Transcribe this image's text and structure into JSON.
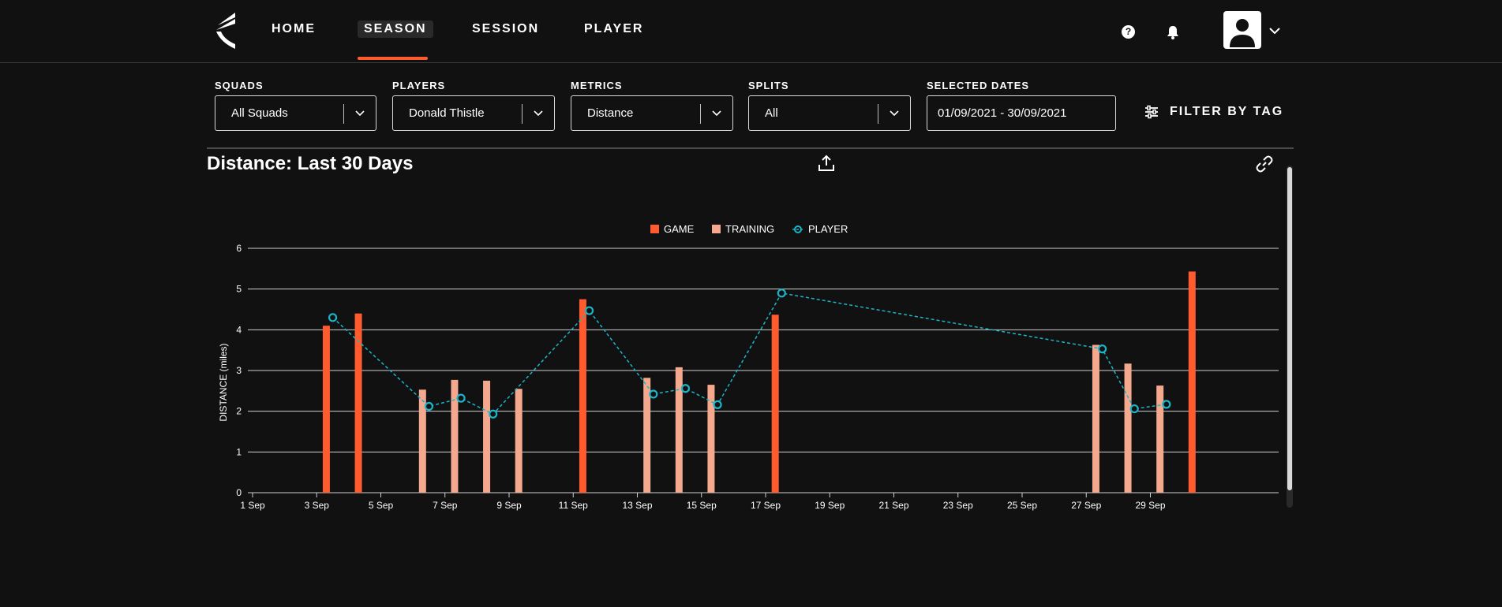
{
  "nav": {
    "items": [
      "HOME",
      "SEASON",
      "SESSION",
      "PLAYER"
    ],
    "active": "SEASON",
    "help_glyph": "?"
  },
  "filters": {
    "squads": {
      "label": "SQUADS",
      "value": "All Squads"
    },
    "players": {
      "label": "PLAYERS",
      "value": "Donald Thistle"
    },
    "metrics": {
      "label": "METRICS",
      "value": "Distance"
    },
    "splits": {
      "label": "SPLITS",
      "value": "All"
    },
    "dates": {
      "label": "SELECTED DATES",
      "value": "01/09/2021 - 30/09/2021"
    },
    "filter_by_tag": "FILTER BY TAG"
  },
  "colors": {
    "game": "#ff5b2e",
    "training": "#f4a98e",
    "player": "#1bb4c8",
    "grid": "#d0d0d0",
    "accent": "#ff5b2e"
  },
  "chart_data": {
    "type": "bar",
    "title": "Distance: Last 30 Days",
    "ylabel": "DISTANCE (miles)",
    "xlabel": "",
    "ylim": [
      0,
      6
    ],
    "yticks": [
      0,
      1,
      2,
      3,
      4,
      5,
      6
    ],
    "xlim": [
      1,
      33
    ],
    "xticks": [
      {
        "day": 1,
        "label": "1 Sep"
      },
      {
        "day": 3,
        "label": "3 Sep"
      },
      {
        "day": 5,
        "label": "5 Sep"
      },
      {
        "day": 7,
        "label": "7 Sep"
      },
      {
        "day": 9,
        "label": "9 Sep"
      },
      {
        "day": 11,
        "label": "11 Sep"
      },
      {
        "day": 13,
        "label": "13 Sep"
      },
      {
        "day": 15,
        "label": "15 Sep"
      },
      {
        "day": 17,
        "label": "17 Sep"
      },
      {
        "day": 19,
        "label": "19 Sep"
      },
      {
        "day": 21,
        "label": "21 Sep"
      },
      {
        "day": 23,
        "label": "23 Sep"
      },
      {
        "day": 25,
        "label": "25 Sep"
      },
      {
        "day": 27,
        "label": "27 Sep"
      },
      {
        "day": 29,
        "label": "29 Sep"
      }
    ],
    "legend": [
      "GAME",
      "TRAINING",
      "PLAYER"
    ],
    "series": [
      {
        "name": "GAME",
        "kind": "bar",
        "points": [
          {
            "day": 3.3,
            "value": 4.1
          },
          {
            "day": 4.3,
            "value": 4.4
          },
          {
            "day": 11.3,
            "value": 4.75
          },
          {
            "day": 17.3,
            "value": 4.37
          },
          {
            "day": 30.3,
            "value": 5.43
          }
        ]
      },
      {
        "name": "TRAINING",
        "kind": "bar",
        "points": [
          {
            "day": 6.3,
            "value": 2.53
          },
          {
            "day": 7.3,
            "value": 2.77
          },
          {
            "day": 8.3,
            "value": 2.75
          },
          {
            "day": 9.3,
            "value": 2.55
          },
          {
            "day": 13.3,
            "value": 2.82
          },
          {
            "day": 14.3,
            "value": 3.08
          },
          {
            "day": 15.3,
            "value": 2.65
          },
          {
            "day": 27.3,
            "value": 3.63
          },
          {
            "day": 28.3,
            "value": 3.17
          },
          {
            "day": 29.3,
            "value": 2.63
          }
        ]
      },
      {
        "name": "PLAYER",
        "kind": "line",
        "points": [
          {
            "day": 3.5,
            "value": 4.3
          },
          {
            "day": 6.5,
            "value": 2.12
          },
          {
            "day": 7.5,
            "value": 2.32
          },
          {
            "day": 8.5,
            "value": 1.93
          },
          {
            "day": 11.5,
            "value": 4.47
          },
          {
            "day": 13.5,
            "value": 2.42
          },
          {
            "day": 14.5,
            "value": 2.56
          },
          {
            "day": 15.5,
            "value": 2.16
          },
          {
            "day": 17.5,
            "value": 4.9
          },
          {
            "day": 27.5,
            "value": 3.53
          },
          {
            "day": 28.5,
            "value": 2.06
          },
          {
            "day": 29.5,
            "value": 2.17
          }
        ]
      }
    ]
  }
}
